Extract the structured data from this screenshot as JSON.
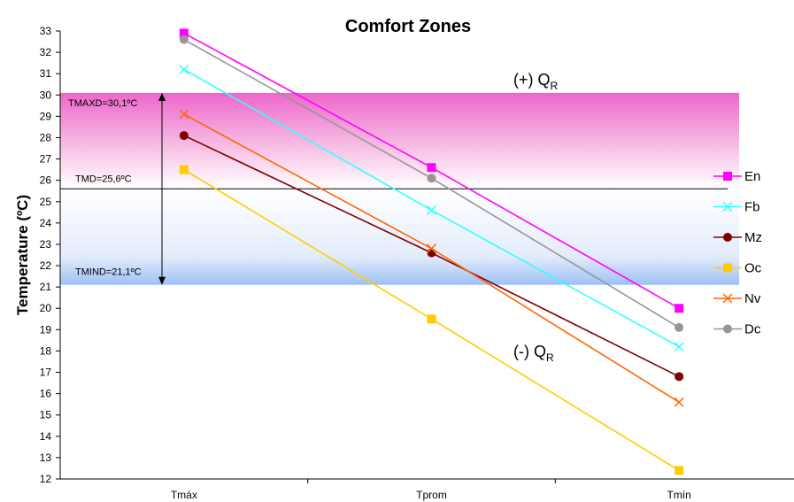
{
  "chart_data": {
    "type": "line",
    "title": "Comfort Zones",
    "ylabel": "Temperature (ºC)",
    "xlabel": "",
    "categories": [
      "Tmáx",
      "Tprom",
      "Tmín"
    ],
    "ylim": [
      12,
      33
    ],
    "yticks": [
      "12",
      "13",
      "14",
      "15",
      "16",
      "17",
      "18",
      "19",
      "20",
      "21",
      "22",
      "23",
      "24",
      "25",
      "26",
      "27",
      "28",
      "29",
      "30",
      "31",
      "32",
      "33"
    ],
    "grid": false,
    "legend_position": "right",
    "series": [
      {
        "name": "En",
        "values": [
          32.9,
          26.6,
          20.0
        ],
        "color": "#ff00ff",
        "marker": "square"
      },
      {
        "name": "Fb",
        "values": [
          31.2,
          24.6,
          18.2
        ],
        "color": "#33ffff",
        "marker": "x"
      },
      {
        "name": "Mz",
        "values": [
          28.1,
          22.6,
          16.8
        ],
        "color": "#800000",
        "marker": "circle"
      },
      {
        "name": "Oc",
        "values": [
          26.5,
          19.5,
          12.4
        ],
        "color": "#ffcc00",
        "marker": "square"
      },
      {
        "name": "Nv",
        "values": [
          29.1,
          22.8,
          15.6
        ],
        "color": "#ff6600",
        "marker": "x"
      },
      {
        "name": "Dc",
        "values": [
          32.6,
          26.1,
          19.1
        ],
        "color": "#969696",
        "marker": "circle"
      }
    ],
    "reference_lines": {
      "tmaxd": {
        "label": "TMAXD=30,1ºC",
        "value": 30.1
      },
      "tmd": {
        "label": "TMD=25,6ºC",
        "value": 25.6
      },
      "tmind": {
        "label": "TMIND=21,1ºC",
        "value": 21.1
      }
    },
    "zone_labels": {
      "upper": {
        "main": "(+) Q",
        "sub": "R"
      },
      "lower": {
        "main": "(-) Q",
        "sub": "R"
      }
    }
  }
}
